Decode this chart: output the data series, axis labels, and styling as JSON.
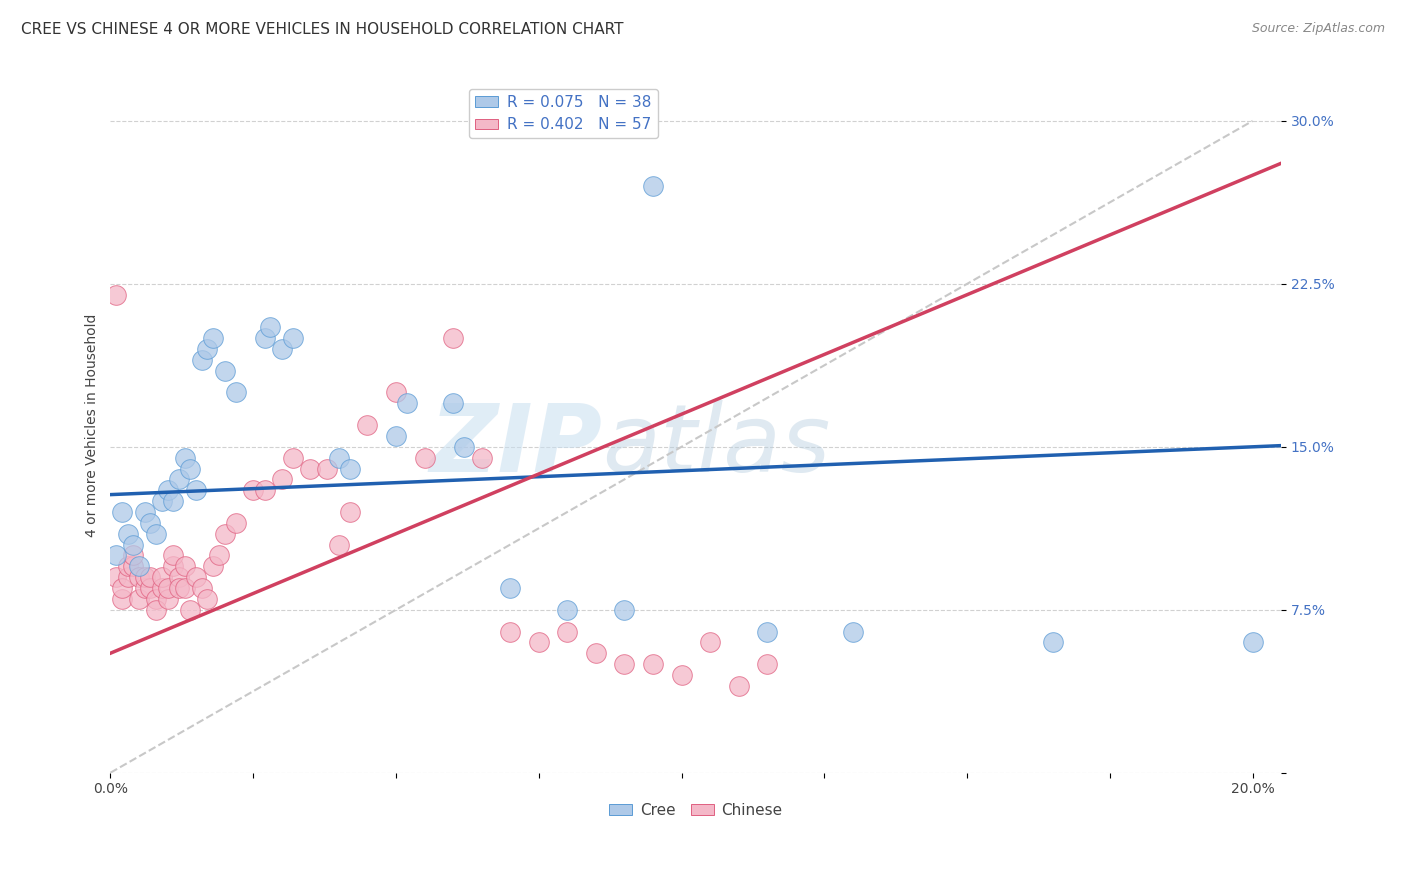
{
  "title": "CREE VS CHINESE 4 OR MORE VEHICLES IN HOUSEHOLD CORRELATION CHART",
  "source": "Source: ZipAtlas.com",
  "ylabel_label": "4 or more Vehicles in Household",
  "xlim": [
    0.0,
    0.205
  ],
  "ylim": [
    0.0,
    0.32
  ],
  "x_ticks": [
    0.0,
    0.025,
    0.05,
    0.075,
    0.1,
    0.125,
    0.15,
    0.175,
    0.2
  ],
  "x_tick_labels": [
    "0.0%",
    "",
    "",
    "",
    "",
    "",
    "",
    "",
    "20.0%"
  ],
  "y_ticks": [
    0.0,
    0.075,
    0.15,
    0.225,
    0.3
  ],
  "y_tick_labels": [
    "",
    "7.5%",
    "15.0%",
    "22.5%",
    "30.0%"
  ],
  "legend_r_cree": "R = 0.075",
  "legend_n_cree": "N = 38",
  "legend_r_chinese": "R = 0.402",
  "legend_n_chinese": "N = 57",
  "cree_color": "#aec9e8",
  "cree_edge_color": "#5b9bd5",
  "chinese_color": "#f4b8c8",
  "chinese_edge_color": "#e06080",
  "trend_cree_color": "#2060b0",
  "trend_chinese_color": "#d04060",
  "trend_diagonal_color": "#c8c8c8",
  "cree_scatter_x": [
    0.001,
    0.002,
    0.003,
    0.004,
    0.005,
    0.006,
    0.007,
    0.008,
    0.009,
    0.01,
    0.011,
    0.012,
    0.013,
    0.014,
    0.015,
    0.016,
    0.017,
    0.018,
    0.02,
    0.022,
    0.027,
    0.028,
    0.03,
    0.032,
    0.04,
    0.042,
    0.05,
    0.052,
    0.06,
    0.062,
    0.07,
    0.08,
    0.09,
    0.095,
    0.115,
    0.13,
    0.165,
    0.2
  ],
  "cree_scatter_y": [
    0.1,
    0.12,
    0.11,
    0.105,
    0.095,
    0.12,
    0.115,
    0.11,
    0.125,
    0.13,
    0.125,
    0.135,
    0.145,
    0.14,
    0.13,
    0.19,
    0.195,
    0.2,
    0.185,
    0.175,
    0.2,
    0.205,
    0.195,
    0.2,
    0.145,
    0.14,
    0.155,
    0.17,
    0.17,
    0.15,
    0.085,
    0.075,
    0.075,
    0.27,
    0.065,
    0.065,
    0.06,
    0.06
  ],
  "chinese_scatter_x": [
    0.001,
    0.001,
    0.002,
    0.002,
    0.003,
    0.003,
    0.004,
    0.004,
    0.005,
    0.005,
    0.006,
    0.006,
    0.007,
    0.007,
    0.008,
    0.008,
    0.009,
    0.009,
    0.01,
    0.01,
    0.011,
    0.011,
    0.012,
    0.012,
    0.013,
    0.013,
    0.014,
    0.015,
    0.016,
    0.017,
    0.018,
    0.019,
    0.02,
    0.022,
    0.025,
    0.027,
    0.03,
    0.032,
    0.035,
    0.038,
    0.04,
    0.042,
    0.045,
    0.05,
    0.055,
    0.06,
    0.065,
    0.07,
    0.075,
    0.08,
    0.085,
    0.09,
    0.095,
    0.1,
    0.105,
    0.11,
    0.115
  ],
  "chinese_scatter_y": [
    0.22,
    0.09,
    0.08,
    0.085,
    0.09,
    0.095,
    0.095,
    0.1,
    0.08,
    0.09,
    0.085,
    0.09,
    0.085,
    0.09,
    0.08,
    0.075,
    0.085,
    0.09,
    0.08,
    0.085,
    0.095,
    0.1,
    0.09,
    0.085,
    0.085,
    0.095,
    0.075,
    0.09,
    0.085,
    0.08,
    0.095,
    0.1,
    0.11,
    0.115,
    0.13,
    0.13,
    0.135,
    0.145,
    0.14,
    0.14,
    0.105,
    0.12,
    0.16,
    0.175,
    0.145,
    0.2,
    0.145,
    0.065,
    0.06,
    0.065,
    0.055,
    0.05,
    0.05,
    0.045,
    0.06,
    0.04,
    0.05
  ],
  "watermark_zip": "ZIP",
  "watermark_atlas": "atlas",
  "background_color": "#ffffff",
  "title_fontsize": 11,
  "axis_label_fontsize": 10,
  "tick_fontsize": 10,
  "legend_fontsize": 11,
  "cree_intercept": 0.128,
  "cree_slope": 0.11,
  "chinese_intercept": 0.055,
  "chinese_slope": 1.1
}
